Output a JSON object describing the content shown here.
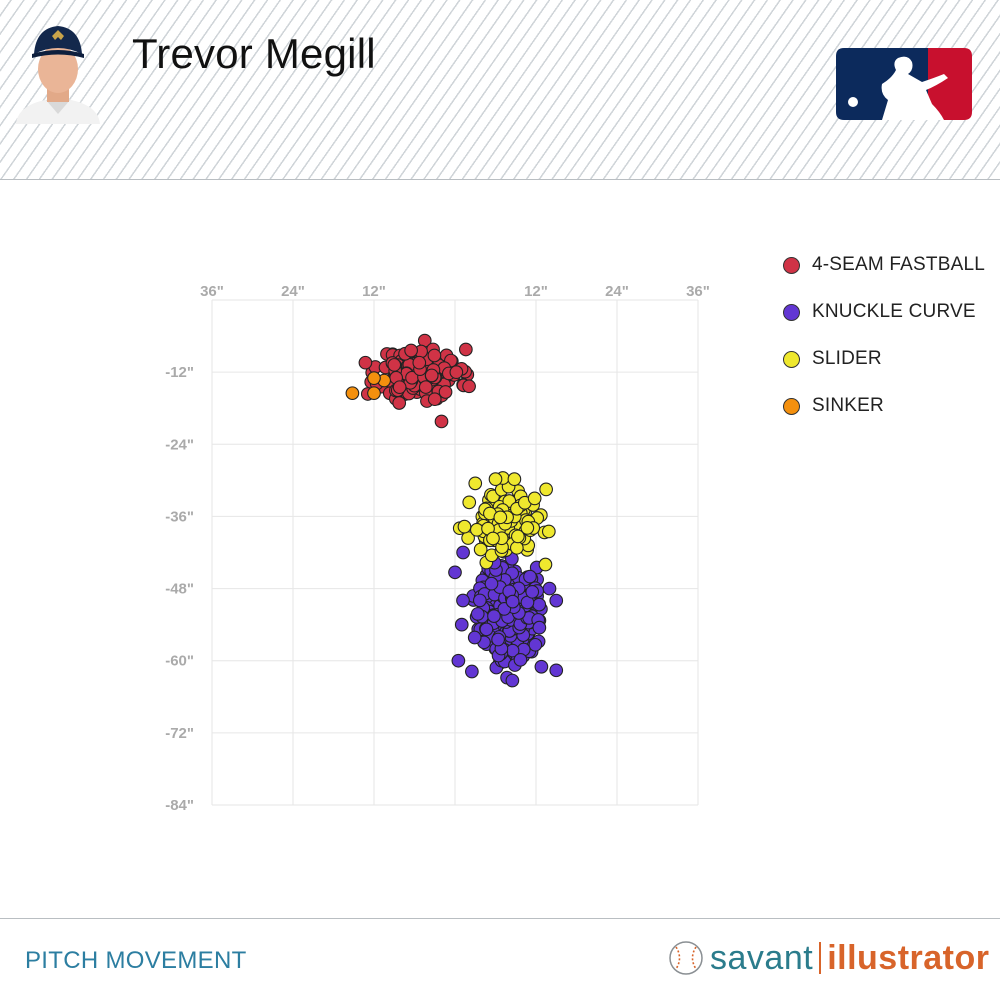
{
  "header": {
    "player_name": "Trevor Megill"
  },
  "footer": {
    "title": "PITCH MOVEMENT",
    "brand_part1": "savant",
    "brand_part2": "illustrator"
  },
  "colors": {
    "four_seam": "#d03346",
    "knuckle_curve": "#6236d3",
    "slider": "#efe82e",
    "sinker": "#f4900e",
    "mlb_blue": "#0c2a5c",
    "mlb_red": "#c8102e"
  },
  "chart_data": {
    "type": "scatter",
    "xlim": [
      -36,
      36
    ],
    "ylim": [
      -84,
      0
    ],
    "x_ticks": [
      {
        "value": -36,
        "label": "36\""
      },
      {
        "value": -24,
        "label": "24\""
      },
      {
        "value": -12,
        "label": "12\""
      },
      {
        "value": 12,
        "label": "12\""
      },
      {
        "value": 24,
        "label": "24\""
      },
      {
        "value": 36,
        "label": "36\""
      }
    ],
    "y_ticks": [
      {
        "value": -12,
        "label": "-12\""
      },
      {
        "value": -24,
        "label": "-24\""
      },
      {
        "value": -36,
        "label": "-36\""
      },
      {
        "value": -48,
        "label": "-48\""
      },
      {
        "value": -60,
        "label": "-60\""
      },
      {
        "value": -72,
        "label": "-72\""
      },
      {
        "value": -84,
        "label": "-84\""
      }
    ],
    "grid": true,
    "legend_position": "right",
    "series": [
      {
        "name": "4-SEAM FASTBALL",
        "color": "#d03346",
        "cluster": {
          "cx": -5.1,
          "cy": -12.2,
          "sx": 2.9,
          "sy": 2.0,
          "n": 220,
          "seed": 11
        },
        "points": [
          [
            -2.0,
            -20.2
          ],
          [
            -9.0,
            -10.8
          ],
          [
            -8.2,
            -14.5
          ],
          [
            0.2,
            -12.0
          ],
          [
            -1.4,
            -15.3
          ],
          [
            -6.5,
            -8.4
          ],
          [
            -3.0,
            -16.5
          ]
        ]
      },
      {
        "name": "SLIDER",
        "color": "#efe82e",
        "cluster": {
          "cx": 7.2,
          "cy": -37.3,
          "sx": 2.4,
          "sy": 2.5,
          "n": 95,
          "seed": 23
        },
        "points": [
          [
            3.0,
            -30.5
          ],
          [
            8.8,
            -29.8
          ],
          [
            13.5,
            -31.5
          ],
          [
            11.8,
            -33.0
          ],
          [
            13.9,
            -38.5
          ],
          [
            3.8,
            -41.5
          ],
          [
            13.4,
            -44.0
          ],
          [
            6.0,
            -29.8
          ],
          [
            1.4,
            -37.7
          ]
        ]
      },
      {
        "name": "KNUCKLE CURVE",
        "color": "#6236d3",
        "cluster": {
          "cx": 7.7,
          "cy": -51.6,
          "sx": 2.1,
          "sy": 4.0,
          "n": 330,
          "seed": 37
        },
        "points": [
          [
            0.5,
            -60.0
          ],
          [
            2.5,
            -61.8
          ],
          [
            8.5,
            -63.3
          ],
          [
            15.0,
            -61.6
          ],
          [
            12.8,
            -61.0
          ],
          [
            15.0,
            -50.0
          ],
          [
            1.0,
            -54.0
          ],
          [
            0.0,
            -45.3
          ],
          [
            14.0,
            -48.0
          ],
          [
            12.5,
            -54.5
          ],
          [
            1.2,
            -42.0
          ]
        ]
      },
      {
        "name": "SINKER",
        "color": "#f4900e",
        "points": [
          [
            -15.2,
            -15.5
          ],
          [
            -12.0,
            -15.5
          ],
          [
            -10.5,
            -13.4
          ],
          [
            -12.0,
            -13.0
          ]
        ]
      }
    ]
  }
}
